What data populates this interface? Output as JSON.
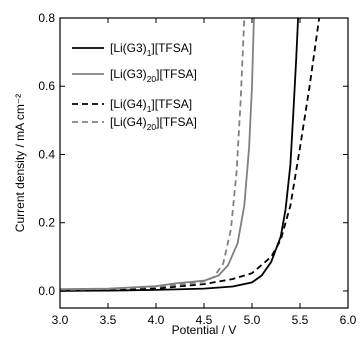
{
  "chart_data": {
    "type": "line",
    "title": "",
    "xlabel": "Potential / V",
    "ylabel": "Current density / mA cm⁻²",
    "xlim": [
      3.0,
      6.0
    ],
    "ylim": [
      -0.05,
      0.8
    ],
    "xticks": [
      "3.0",
      "3.5",
      "4.0",
      "4.5",
      "5.0",
      "5.5",
      "6.0"
    ],
    "yticks": [
      "0.0",
      "0.2",
      "0.4",
      "0.6",
      "0.8"
    ],
    "grid": false,
    "legend_position": "top-left",
    "series": [
      {
        "name": "[Li(G3)1][TFSA]",
        "legend_main": "[Li(G3)",
        "legend_sub": "1",
        "legend_tail": "][TFSA]",
        "color": "#000000",
        "dash": "solid",
        "points": [
          [
            3.0,
            0.0
          ],
          [
            3.5,
            0.001
          ],
          [
            4.0,
            0.003
          ],
          [
            4.5,
            0.007
          ],
          [
            4.8,
            0.013
          ],
          [
            5.0,
            0.025
          ],
          [
            5.1,
            0.045
          ],
          [
            5.2,
            0.085
          ],
          [
            5.3,
            0.16
          ],
          [
            5.35,
            0.24
          ],
          [
            5.4,
            0.37
          ],
          [
            5.43,
            0.52
          ],
          [
            5.46,
            0.68
          ],
          [
            5.48,
            0.8
          ]
        ]
      },
      {
        "name": "[Li(G3)20][TFSA]",
        "legend_main": "[Li(G3)",
        "legend_sub": "20",
        "legend_tail": "][TFSA]",
        "color": "#808080",
        "dash": "solid",
        "points": [
          [
            3.0,
            0.005
          ],
          [
            3.5,
            0.007
          ],
          [
            4.0,
            0.014
          ],
          [
            4.2,
            0.022
          ],
          [
            4.5,
            0.03
          ],
          [
            4.65,
            0.045
          ],
          [
            4.75,
            0.075
          ],
          [
            4.85,
            0.14
          ],
          [
            4.92,
            0.25
          ],
          [
            4.97,
            0.42
          ],
          [
            5.0,
            0.6
          ],
          [
            5.02,
            0.8
          ]
        ]
      },
      {
        "name": "[Li(G4)1][TFSA]",
        "legend_main": "[Li(G4)",
        "legend_sub": "1",
        "legend_tail": "][TFSA]",
        "color": "#000000",
        "dash": "dashed",
        "points": [
          [
            3.0,
            0.0
          ],
          [
            3.5,
            0.002
          ],
          [
            4.0,
            0.007
          ],
          [
            4.5,
            0.02
          ],
          [
            4.8,
            0.035
          ],
          [
            5.0,
            0.052
          ],
          [
            5.2,
            0.1
          ],
          [
            5.3,
            0.15
          ],
          [
            5.4,
            0.25
          ],
          [
            5.5,
            0.42
          ],
          [
            5.6,
            0.6
          ],
          [
            5.7,
            0.8
          ]
        ]
      },
      {
        "name": "[Li(G4)20][TFSA]",
        "legend_main": "[Li(G4)",
        "legend_sub": "20",
        "legend_tail": "][TFSA]",
        "color": "#808080",
        "dash": "dashed",
        "points": [
          [
            3.0,
            0.003
          ],
          [
            3.5,
            0.006
          ],
          [
            4.0,
            0.012
          ],
          [
            4.3,
            0.02
          ],
          [
            4.5,
            0.028
          ],
          [
            4.6,
            0.04
          ],
          [
            4.7,
            0.08
          ],
          [
            4.78,
            0.18
          ],
          [
            4.84,
            0.35
          ],
          [
            4.88,
            0.55
          ],
          [
            4.92,
            0.8
          ]
        ]
      }
    ]
  }
}
